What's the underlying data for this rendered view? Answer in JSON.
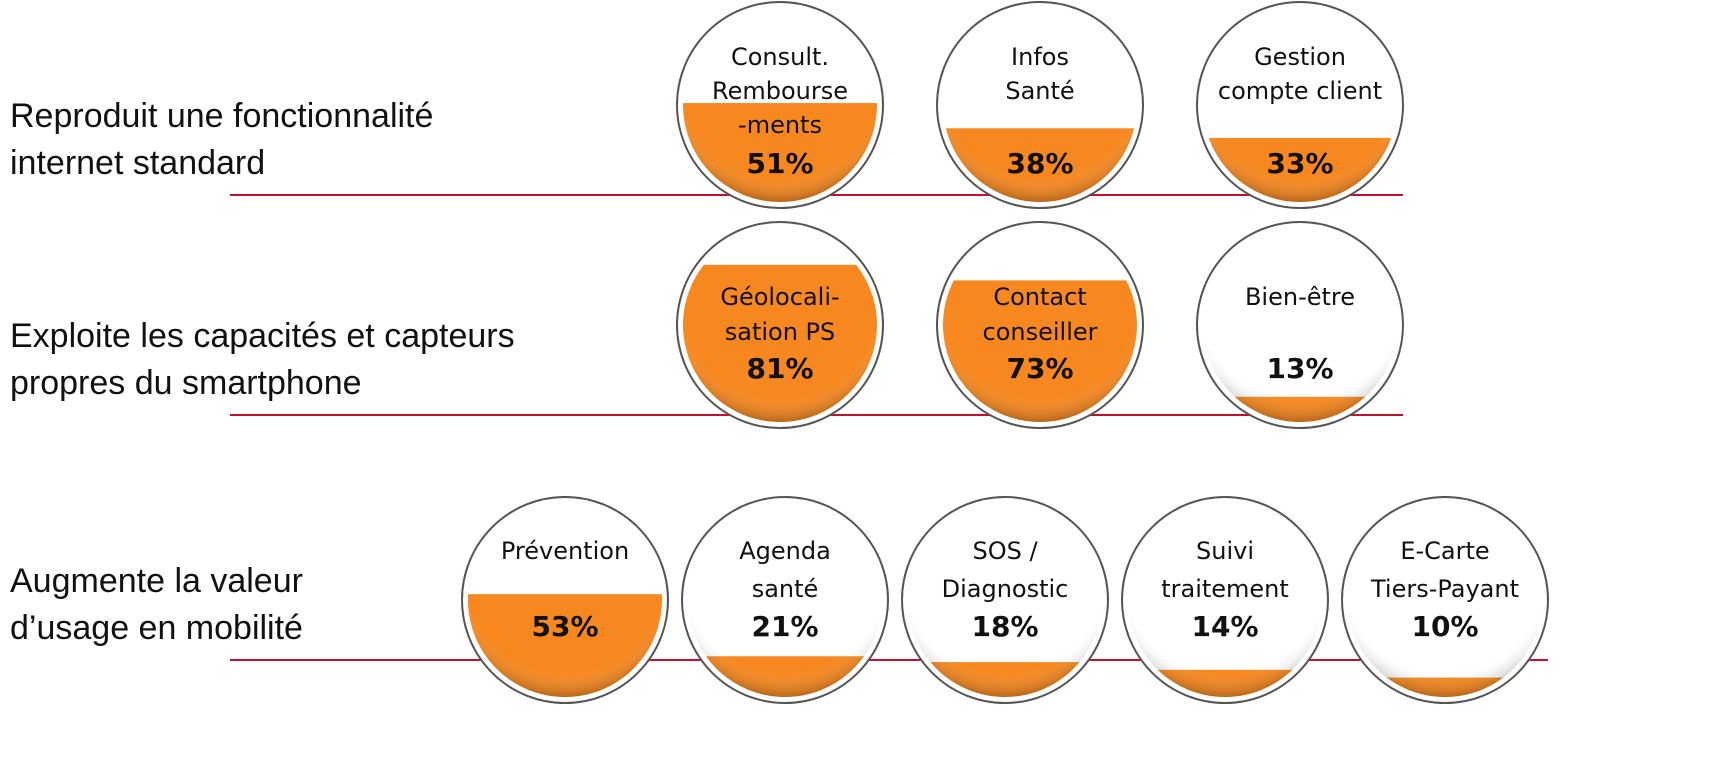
{
  "chart_data": [
    {
      "type": "fill-circles",
      "label": [
        "Reproduit une fonctionnalité",
        "internet standard"
      ],
      "categories": [
        [
          "Consult.",
          "Rembourse",
          "-ments"
        ],
        [
          "Infos",
          "Santé"
        ],
        [
          "Gestion",
          "compte client"
        ]
      ],
      "values": [
        51,
        38,
        33
      ],
      "value_labels": [
        "51%",
        "38%",
        "33%"
      ],
      "color": "#f7881f"
    },
    {
      "type": "fill-circles",
      "label": [
        "Exploite les capacités et capteurs",
        "propres du smartphone"
      ],
      "categories": [
        [
          "Géolocali-",
          "sation PS"
        ],
        [
          "Contact",
          "conseiller"
        ],
        [
          "Bien-être"
        ]
      ],
      "values": [
        81,
        73,
        13
      ],
      "value_labels": [
        "81%",
        "73%",
        "13%"
      ],
      "color": "#f7881f"
    },
    {
      "type": "fill-circles",
      "label": [
        "Augmente la valeur",
        "d’usage en mobilité"
      ],
      "categories": [
        [
          "Prévention"
        ],
        [
          "Agenda",
          "santé"
        ],
        [
          "SOS /",
          "Diagnostic"
        ],
        [
          "Suivi",
          "traitement"
        ],
        [
          "E-Carte",
          "Tiers-Payant"
        ]
      ],
      "values": [
        53,
        21,
        18,
        14,
        10
      ],
      "value_labels": [
        "53%",
        "21%",
        "18%",
        "14%",
        "10%"
      ],
      "color": "#f7881f"
    }
  ]
}
